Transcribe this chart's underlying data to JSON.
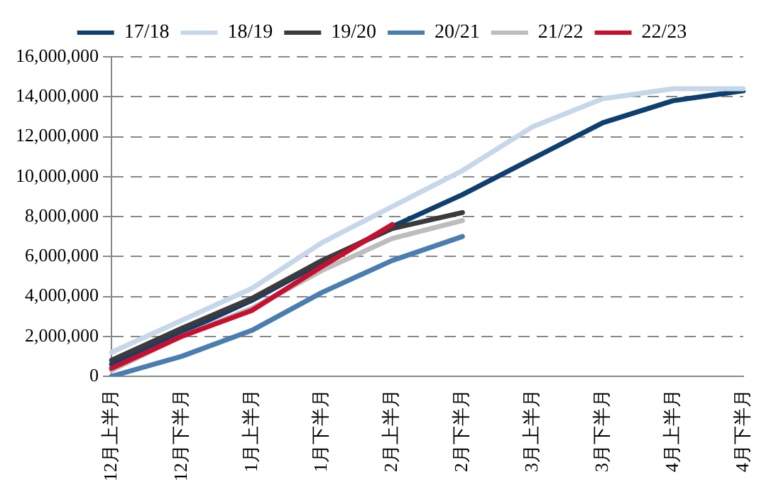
{
  "chart_data": {
    "type": "line",
    "categories": [
      "12月上半月",
      "12月下半月",
      "1月上半月",
      "1月下半月",
      "2月上半月",
      "2月下半月",
      "3月上半月",
      "3月下半月",
      "4月上半月",
      "4月下半月"
    ],
    "series": [
      {
        "name": "17/18",
        "color": "#0e3f6e",
        "values": [
          600000,
          2200000,
          3800000,
          5700000,
          7500000,
          9100000,
          10900000,
          12700000,
          13800000,
          14300000
        ]
      },
      {
        "name": "18/19",
        "color": "#c6d7ea",
        "values": [
          1200000,
          2800000,
          4400000,
          6700000,
          8500000,
          10300000,
          12500000,
          13900000,
          14400000,
          14400000
        ]
      },
      {
        "name": "19/20",
        "color": "#3b3b3d",
        "values": [
          800000,
          2400000,
          3900000,
          5800000,
          7400000,
          8200000,
          null,
          null,
          null,
          null
        ]
      },
      {
        "name": "20/21",
        "color": "#4a7eb0",
        "values": [
          0,
          1000000,
          2300000,
          4200000,
          5800000,
          7000000,
          null,
          null,
          null,
          null
        ]
      },
      {
        "name": "21/22",
        "color": "#bdbdbd",
        "values": [
          300000,
          2000000,
          3400000,
          5300000,
          6900000,
          7800000,
          null,
          null,
          null,
          null
        ]
      },
      {
        "name": "22/23",
        "color": "#c8102e",
        "values": [
          400000,
          2000000,
          3300000,
          5500000,
          7600000,
          null,
          null,
          null,
          null,
          null
        ]
      }
    ],
    "ylim": [
      0,
      16000000
    ],
    "yticks": [
      0,
      {
        "value": 2000000,
        "label": "2,000,000"
      },
      {
        "value": 4000000,
        "label": "4,000,000"
      },
      {
        "value": 6000000,
        "label": "6,000,000"
      },
      {
        "value": 8000000,
        "label": "8,000,000"
      },
      {
        "value": 10000000,
        "label": "10,000,000"
      },
      {
        "value": 12000000,
        "label": "12,000,000"
      },
      {
        "value": 14000000,
        "label": "14,000,000"
      },
      {
        "value": 16000000,
        "label": "16,000,000"
      }
    ],
    "grid": "y",
    "legend": "top",
    "marker": "none",
    "line_style": "solid"
  }
}
